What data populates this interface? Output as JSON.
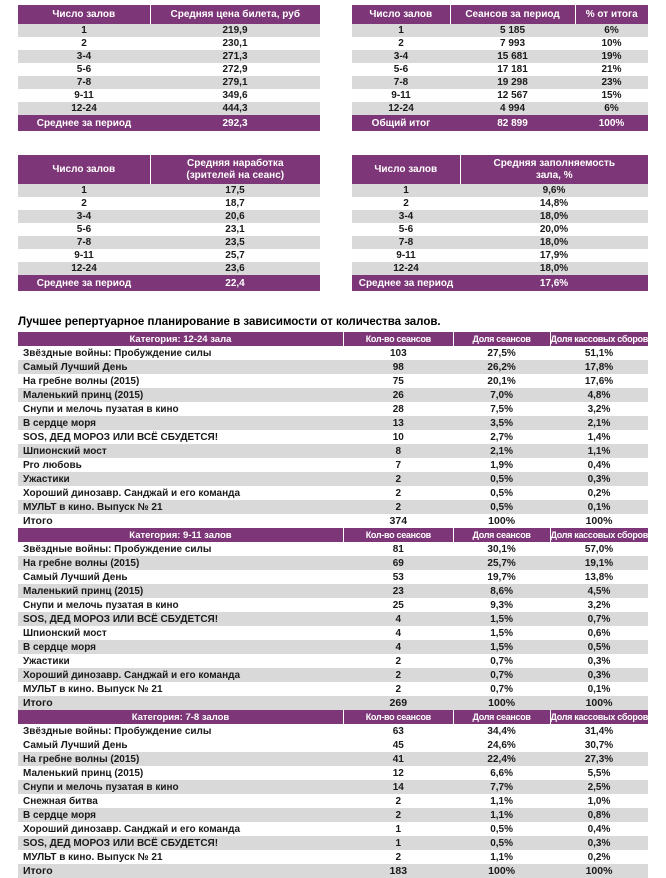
{
  "colors": {
    "header_purple": "#7D3677",
    "band_gray": "#D9D9D9",
    "text": "#1A1A1A",
    "background": "#FFFFFF"
  },
  "summary_tables": {
    "price": {
      "headers": [
        "Число залов",
        "Средняя цена билета, руб"
      ],
      "rows": [
        [
          "1",
          "219,9"
        ],
        [
          "2",
          "230,1"
        ],
        [
          "3-4",
          "271,3"
        ],
        [
          "5-6",
          "272,9"
        ],
        [
          "7-8",
          "279,1"
        ],
        [
          "9-11",
          "349,6"
        ],
        [
          "12-24",
          "444,3"
        ]
      ],
      "footer": [
        "Среднее за период",
        "292,3"
      ]
    },
    "sessions": {
      "headers": [
        "Число залов",
        "Сеансов за период",
        "% от итога"
      ],
      "rows": [
        [
          "1",
          "5 185",
          "6%"
        ],
        [
          "2",
          "7 993",
          "10%"
        ],
        [
          "3-4",
          "15 681",
          "19%"
        ],
        [
          "5-6",
          "17 181",
          "21%"
        ],
        [
          "7-8",
          "19 298",
          "23%"
        ],
        [
          "9-11",
          "12 567",
          "15%"
        ],
        [
          "12-24",
          "4 994",
          "6%"
        ]
      ],
      "footer": [
        "Общий итог",
        "82 899",
        "100%"
      ]
    },
    "attendance": {
      "headers": [
        "Число залов",
        "Средняя наработка\n(зрителей на сеанс)"
      ],
      "rows": [
        [
          "1",
          "17,5"
        ],
        [
          "2",
          "18,7"
        ],
        [
          "3-4",
          "20,6"
        ],
        [
          "5-6",
          "23,1"
        ],
        [
          "7-8",
          "23,5"
        ],
        [
          "9-11",
          "25,7"
        ],
        [
          "12-24",
          "23,6"
        ]
      ],
      "footer": [
        "Среднее за период",
        "22,4"
      ]
    },
    "occupancy": {
      "headers": [
        "Число залов",
        "Средняя заполняемость\nзала, %"
      ],
      "rows": [
        [
          "1",
          "9,6%"
        ],
        [
          "2",
          "14,8%"
        ],
        [
          "3-4",
          "18,0%"
        ],
        [
          "5-6",
          "20,0%"
        ],
        [
          "7-8",
          "18,0%"
        ],
        [
          "9-11",
          "17,9%"
        ],
        [
          "12-24",
          "18,0%"
        ]
      ],
      "footer": [
        "Среднее за период",
        "17,6%"
      ]
    }
  },
  "heading": "Лучшее репертуарное планирование в зависимости от количества залов.",
  "repertoire": {
    "column_headers": [
      "Кол-во сеансов",
      "Доля сеансов",
      "Доля кассовых сборов"
    ],
    "sections": [
      {
        "label": "Категория: 12-24 зала",
        "rows": [
          [
            "Звёздные войны: Пробуждение силы",
            "103",
            "27,5%",
            "51,1%"
          ],
          [
            "Самый Лучший День",
            "98",
            "26,2%",
            "17,8%"
          ],
          [
            "На гребне волны (2015)",
            "75",
            "20,1%",
            "17,6%"
          ],
          [
            "Маленький принц (2015)",
            "26",
            "7,0%",
            "4,8%"
          ],
          [
            "Снупи и мелочь пузатая в кино",
            "28",
            "7,5%",
            "3,2%"
          ],
          [
            "В сердце моря",
            "13",
            "3,5%",
            "2,1%"
          ],
          [
            "SOS, ДЕД МОРОЗ ИЛИ ВСЁ СБУДЕТСЯ!",
            "10",
            "2,7%",
            "1,4%"
          ],
          [
            "Шпионский мост",
            "8",
            "2,1%",
            "1,1%"
          ],
          [
            "Pro любовь",
            "7",
            "1,9%",
            "0,4%"
          ],
          [
            "Ужастики",
            "2",
            "0,5%",
            "0,3%"
          ],
          [
            "Хороший динозавр. Санджай и его команда",
            "2",
            "0,5%",
            "0,2%"
          ],
          [
            "МУЛЬТ в кино. Выпуск № 21",
            "2",
            "0,5%",
            "0,1%"
          ]
        ],
        "total": [
          "Итого",
          "374",
          "100%",
          "100%"
        ]
      },
      {
        "label": "Категория: 9-11 залов",
        "rows": [
          [
            "Звёздные войны: Пробуждение силы",
            "81",
            "30,1%",
            "57,0%"
          ],
          [
            "На гребне волны (2015)",
            "69",
            "25,7%",
            "19,1%"
          ],
          [
            "Самый Лучший День",
            "53",
            "19,7%",
            "13,8%"
          ],
          [
            "Маленький принц (2015)",
            "23",
            "8,6%",
            "4,5%"
          ],
          [
            "Снупи и мелочь пузатая в кино",
            "25",
            "9,3%",
            "3,2%"
          ],
          [
            "SOS, ДЕД МОРОЗ ИЛИ ВСЁ СБУДЕТСЯ!",
            "4",
            "1,5%",
            "0,7%"
          ],
          [
            "Шпионский мост",
            "4",
            "1,5%",
            "0,6%"
          ],
          [
            "В сердце моря",
            "4",
            "1,5%",
            "0,5%"
          ],
          [
            "Ужастики",
            "2",
            "0,7%",
            "0,3%"
          ],
          [
            "Хороший динозавр. Санджай и его команда",
            "2",
            "0,7%",
            "0,3%"
          ],
          [
            "МУЛЬТ в кино. Выпуск № 21",
            "2",
            "0,7%",
            "0,1%"
          ]
        ],
        "total": [
          "Итого",
          "269",
          "100%",
          "100%"
        ]
      },
      {
        "label": "Категория: 7-8 залов",
        "rows": [
          [
            "Звёздные войны: Пробуждение силы",
            "63",
            "34,4%",
            "31,4%"
          ],
          [
            "Самый Лучший День",
            "45",
            "24,6%",
            "30,7%"
          ],
          [
            "На гребне волны (2015)",
            "41",
            "22,4%",
            "27,3%"
          ],
          [
            "Маленький принц (2015)",
            "12",
            "6,6%",
            "5,5%"
          ],
          [
            "Снупи и мелочь пузатая в кино",
            "14",
            "7,7%",
            "2,5%"
          ],
          [
            "Снежная битва",
            "2",
            "1,1%",
            "1,0%"
          ],
          [
            "В сердце моря",
            "2",
            "1,1%",
            "0,8%"
          ],
          [
            "Хороший динозавр. Санджай и его команда",
            "1",
            "0,5%",
            "0,4%"
          ],
          [
            "SOS, ДЕД МОРОЗ ИЛИ ВСЁ СБУДЕТСЯ!",
            "1",
            "0,5%",
            "0,3%"
          ],
          [
            "МУЛЬТ в кино. Выпуск № 21",
            "2",
            "1,1%",
            "0,2%"
          ]
        ],
        "total": [
          "Итого",
          "183",
          "100%",
          "100%"
        ]
      }
    ]
  }
}
